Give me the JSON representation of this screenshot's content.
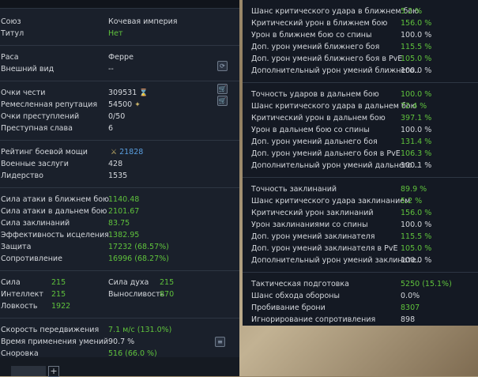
{
  "left": {
    "sections": [
      {
        "rows": [
          {
            "label": "Союз",
            "value": "Кочевая империя"
          },
          {
            "label": "Титул",
            "value": "Нет",
            "color": "#5fc23c"
          }
        ]
      },
      {
        "rows": [
          {
            "label": "Раса",
            "value": "Ферре"
          },
          {
            "label": "Внешний вид",
            "value": "--"
          }
        ]
      },
      {
        "rows": [
          {
            "label": "Очки чести",
            "value": "309531"
          },
          {
            "label": "Ремесленная репутация",
            "value": "54500"
          },
          {
            "label": "Очки преступлений",
            "value": "0/50"
          },
          {
            "label": "Преступная слава",
            "value": "6"
          }
        ]
      },
      {
        "rows": [
          {
            "label": "Рейтинг боевой мощи",
            "value": "21828",
            "color": "#5a9fe0"
          },
          {
            "label": "Военные заслуги",
            "value": "428"
          },
          {
            "label": "Лидерство",
            "value": "1535"
          }
        ]
      },
      {
        "rows": [
          {
            "label": "Сила атаки в ближнем бою",
            "value": "1140.48",
            "color": "#5fc23c"
          },
          {
            "label": "Сила атаки в дальнем бою",
            "value": "2101.67",
            "color": "#5fc23c"
          },
          {
            "label": "Сила заклинаний",
            "value": "83.75",
            "color": "#5fc23c"
          },
          {
            "label": "Эффективность исцеления",
            "value": "1382.95",
            "color": "#5fc23c"
          },
          {
            "label": "Защита",
            "value": "17232 (68.57%)",
            "color": "#5fc23c"
          },
          {
            "label": "Сопротивление",
            "value": "16996 (68.27%)",
            "color": "#5fc23c"
          }
        ]
      },
      {
        "grid": true,
        "rows": [
          {
            "label": "Сила",
            "value": "215",
            "color": "#5fc23c"
          },
          {
            "label": "Сила духа",
            "value": "215",
            "color": "#5fc23c"
          },
          {
            "label": "Интеллект",
            "value": "215",
            "color": "#5fc23c"
          },
          {
            "label": "Выносливость",
            "value": "870",
            "color": "#5fc23c"
          },
          {
            "label": "Ловкость",
            "value": "1922",
            "color": "#5fc23c"
          }
        ]
      },
      {
        "rows": [
          {
            "label": "Скорость передвижения",
            "value": "7.1 м/с (131.0%)",
            "color": "#5fc23c"
          },
          {
            "label": "Время применения умений",
            "value": "90.7 %"
          },
          {
            "label": "Сноровка",
            "value": "516 (66.0 %)",
            "color": "#5fc23c"
          }
        ]
      }
    ]
  },
  "right": {
    "sections": [
      {
        "rows": [
          {
            "label": "Шанс критического удара в ближнем бою",
            "value": "5.2 %",
            "color": "#5fc23c"
          },
          {
            "label": "Критический урон в ближнем бою",
            "value": "156.0 %",
            "color": "#5fc23c"
          },
          {
            "label": "Урон в ближнем бою со спины",
            "value": "100.0 %"
          },
          {
            "label": "Доп. урон умений ближнего боя",
            "value": "115.5 %",
            "color": "#5fc23c"
          },
          {
            "label": "Доп. урон умений ближнего боя в PvE",
            "value": "105.0 %",
            "color": "#5fc23c"
          },
          {
            "label": "Дополнительный урон умений ближнего..",
            "value": "100.0 %"
          }
        ]
      },
      {
        "rows": [
          {
            "label": "Точность ударов в дальнем бою",
            "value": "100.0 %",
            "color": "#5fc23c"
          },
          {
            "label": "Шанс критического удара в дальнем бою",
            "value": "72.4 %",
            "color": "#5fc23c"
          },
          {
            "label": "Критический урон в дальнем бою",
            "value": "397.1 %",
            "color": "#5fc23c"
          },
          {
            "label": "Урон в дальнем бою со спины",
            "value": "100.0 %"
          },
          {
            "label": "Доп. урон умений дальнего боя",
            "value": "131.4 %",
            "color": "#5fc23c"
          },
          {
            "label": "Доп. урон умений дальнего боя в PvE",
            "value": "106.3 %",
            "color": "#5fc23c"
          },
          {
            "label": "Дополнительный урон умений дальнего ..",
            "value": "100.1 %"
          }
        ]
      },
      {
        "rows": [
          {
            "label": "Точность заклинаний",
            "value": "89.9 %",
            "color": "#5fc23c"
          },
          {
            "label": "Шанс критического удара заклинанием",
            "value": "5.2 %",
            "color": "#5fc23c"
          },
          {
            "label": "Критический урон заклинаний",
            "value": "156.0 %",
            "color": "#5fc23c"
          },
          {
            "label": "Урон заклинаниями со спины",
            "value": "100.0 %"
          },
          {
            "label": "Доп. урон умений заклинателя",
            "value": "115.5 %",
            "color": "#5fc23c"
          },
          {
            "label": "Доп. урон умений заклинателя в PvE",
            "value": "105.0 %",
            "color": "#5fc23c"
          },
          {
            "label": "Дополнительный урон умений заклинате..",
            "value": "100.0 %"
          }
        ]
      },
      {
        "rows": [
          {
            "label": "Тактическая подготовка",
            "value": "5250 (15.1%)",
            "color": "#5fc23c"
          },
          {
            "label": "Шанс обхода обороны",
            "value": "0.0%"
          },
          {
            "label": "Пробивание брони",
            "value": "8307",
            "color": "#5fc23c"
          },
          {
            "label": "Игнорирование сопротивления",
            "value": "898"
          }
        ]
      }
    ]
  }
}
